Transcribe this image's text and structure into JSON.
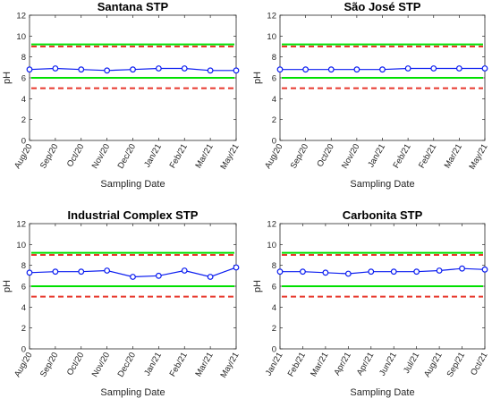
{
  "colors": {
    "series": "#0a1cf0",
    "upper_limit_green": "#00e000",
    "lower_limit_green": "#00e000",
    "dashed_red": "#e8382c",
    "axis": "#262626"
  },
  "chart_data": [
    {
      "type": "line",
      "title": "Santana STP",
      "xlabel": "Sampling Date",
      "ylabel": "pH",
      "ylim": [
        0,
        12
      ],
      "yticks": [
        0,
        2,
        4,
        6,
        8,
        10,
        12
      ],
      "categories": [
        "Aug/20",
        "Sep/20",
        "Oct/20",
        "Nov/20",
        "Dec/20",
        "Jan/21",
        "Feb/21",
        "Mar/21",
        "May/21"
      ],
      "series": [
        {
          "values": [
            6.8,
            6.9,
            6.8,
            6.7,
            6.8,
            6.9,
            6.9,
            6.7,
            6.7
          ]
        }
      ],
      "reference_lines": {
        "green_upper": 9.2,
        "green_lower": 6.0,
        "red_dashed_upper": 9.0,
        "red_dashed_lower": 5.0
      }
    },
    {
      "type": "line",
      "title": "São José STP",
      "xlabel": "Sampling Date",
      "ylabel": "pH",
      "ylim": [
        0,
        12
      ],
      "yticks": [
        0,
        2,
        4,
        6,
        8,
        10,
        12
      ],
      "categories": [
        "Aug/20",
        "Sep/20",
        "Oct/20",
        "Nov/20",
        "Jan/21",
        "Feb/21",
        "Feb/21",
        "Mar/21",
        "May/21"
      ],
      "series": [
        {
          "values": [
            6.8,
            6.8,
            6.8,
            6.8,
            6.8,
            6.9,
            6.9,
            6.9,
            6.9
          ]
        }
      ],
      "reference_lines": {
        "green_upper": 9.2,
        "green_lower": 6.0,
        "red_dashed_upper": 9.0,
        "red_dashed_lower": 5.0
      }
    },
    {
      "type": "line",
      "title": "Industrial Complex STP",
      "xlabel": "Sampling Date",
      "ylabel": "pH",
      "ylim": [
        0,
        12
      ],
      "yticks": [
        0,
        2,
        4,
        6,
        8,
        10,
        12
      ],
      "categories": [
        "Aug/20",
        "Sep/20",
        "Oct/20",
        "Nov/20",
        "Dec/20",
        "Jan/21",
        "Feb/21",
        "Mar/21",
        "May/21"
      ],
      "series": [
        {
          "values": [
            7.3,
            7.4,
            7.4,
            7.5,
            6.9,
            7.0,
            7.5,
            6.9,
            7.8
          ]
        }
      ],
      "reference_lines": {
        "green_upper": 9.2,
        "green_lower": 6.0,
        "red_dashed_upper": 9.0,
        "red_dashed_lower": 5.0
      }
    },
    {
      "type": "line",
      "title": "Carbonita STP",
      "xlabel": "Sampling Date",
      "ylabel": "pH",
      "ylim": [
        0,
        12
      ],
      "yticks": [
        0,
        2,
        4,
        6,
        8,
        10,
        12
      ],
      "categories": [
        "Jan/21",
        "Feb/21",
        "Mar/21",
        "Apr/21",
        "Apr/21",
        "Jun/21",
        "Jul/21",
        "Aug/21",
        "Sep/21",
        "Oct/21"
      ],
      "series": [
        {
          "values": [
            7.4,
            7.4,
            7.3,
            7.2,
            7.4,
            7.4,
            7.4,
            7.5,
            7.7,
            7.6
          ]
        }
      ],
      "reference_lines": {
        "green_upper": 9.2,
        "green_lower": 6.0,
        "red_dashed_upper": 9.0,
        "red_dashed_lower": 5.0
      }
    }
  ]
}
